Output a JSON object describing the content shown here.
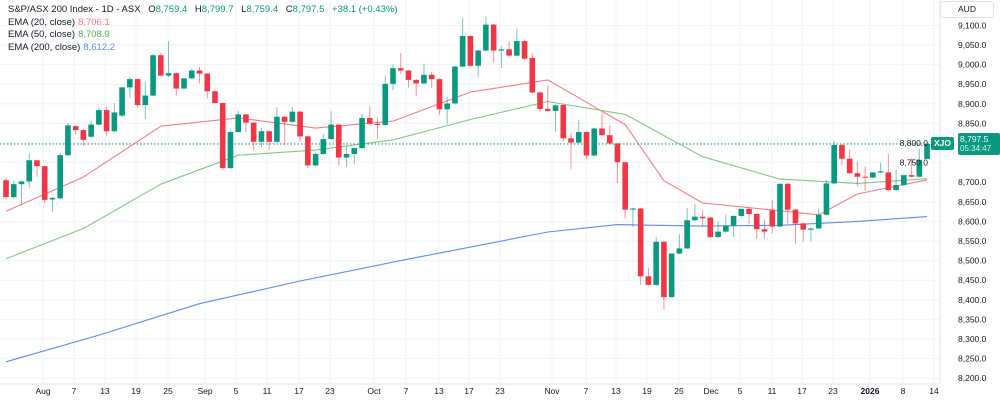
{
  "header": {
    "title": "S&P/ASX 200 Index - 1D - ASX",
    "open_label": "O",
    "open": "8,759.4",
    "high_label": "H",
    "high": "8,799.7",
    "low_label": "L",
    "low": "8,759.4",
    "close_label": "C",
    "close": "8,797.5",
    "change": "+38.1 (+0.43%)"
  },
  "indicators": [
    {
      "label": "EMA (20, close)",
      "value": "8,706.1",
      "color": "#f77c80"
    },
    {
      "label": "EMA (50, close)",
      "value": "8,708.9",
      "color": "#81c784"
    },
    {
      "label": "EMA (200, close)",
      "value": "8,612.2",
      "color": "#5b8def"
    }
  ],
  "price_axis": {
    "currency": "AUD",
    "symbol": "XJO",
    "last_price": "8,797.5",
    "countdown": "05:34:47"
  },
  "colors": {
    "up": "#089981",
    "down": "#f23645",
    "grid": "#f0f3fa",
    "last_price_line": "#089981"
  },
  "chart_data": {
    "type": "candlestick",
    "title": "S&P/ASX 200 Index - 1D - ASX",
    "ylim": [
      8200,
      9100
    ],
    "y_ticks": [
      "8,200.0",
      "8,250.0",
      "8,300.0",
      "8,350.0",
      "8,400.0",
      "8,450.0",
      "8,500.0",
      "8,550.0",
      "8,600.0",
      "8,650.0",
      "8,700.0",
      "8,750.0",
      "8,800.0",
      "8,850.0",
      "8,900.0",
      "8,950.0",
      "9,000.0",
      "9,050.0",
      "9,100.0"
    ],
    "x_ticks": [
      "Aug",
      "7",
      "13",
      "19",
      "25",
      "Sep",
      "5",
      "11",
      "17",
      "23",
      "Oct",
      "7",
      "13",
      "17",
      "23",
      "Nov",
      "7",
      "13",
      "19",
      "25",
      "Dec",
      "5",
      "11",
      "17",
      "23",
      "2026",
      "8",
      "14"
    ],
    "grid": true,
    "ohlc_order": [
      "open",
      "high",
      "low",
      "close"
    ],
    "candles": [
      [
        8705,
        8710,
        8657,
        8662
      ],
      [
        8662,
        8704,
        8659,
        8695
      ],
      [
        8695,
        8704,
        8640,
        8702
      ],
      [
        8702,
        8774,
        8686,
        8756
      ],
      [
        8756,
        8756,
        8714,
        8741
      ],
      [
        8741,
        8743,
        8646,
        8655
      ],
      [
        8656,
        8662,
        8625,
        8660
      ],
      [
        8659,
        8774,
        8657,
        8769
      ],
      [
        8769,
        8851,
        8767,
        8845
      ],
      [
        8843,
        8845,
        8822,
        8833
      ],
      [
        8833,
        8835,
        8792,
        8808
      ],
      [
        8816,
        8856,
        8814,
        8847
      ],
      [
        8847,
        8890,
        8845,
        8884
      ],
      [
        8884,
        8892,
        8818,
        8830
      ],
      [
        8830,
        8902,
        8828,
        8878
      ],
      [
        8870,
        8943,
        8866,
        8942
      ],
      [
        8942,
        8967,
        8915,
        8963
      ],
      [
        8963,
        8965,
        8891,
        8897
      ],
      [
        8897,
        8956,
        8861,
        8921
      ],
      [
        8921,
        9027,
        8919,
        9024
      ],
      [
        9024,
        9030,
        8970,
        8972
      ],
      [
        8972,
        9060,
        8968,
        8978
      ],
      [
        8978,
        8980,
        8921,
        8939
      ],
      [
        8939,
        8966,
        8937,
        8965
      ],
      [
        8965,
        8989,
        8963,
        8985
      ],
      [
        8985,
        8994,
        8952,
        8977
      ],
      [
        8977,
        8979,
        8913,
        8932
      ],
      [
        8932,
        8934,
        8900,
        8902
      ],
      [
        8902,
        8904,
        8731,
        8736
      ],
      [
        8736,
        8832,
        8734,
        8828
      ],
      [
        8828,
        8883,
        8826,
        8873
      ],
      [
        8873,
        8875,
        8828,
        8852
      ],
      [
        8852,
        8854,
        8783,
        8803
      ],
      [
        8803,
        8839,
        8790,
        8830
      ],
      [
        8830,
        8832,
        8783,
        8803
      ],
      [
        8803,
        8891,
        8801,
        8867
      ],
      [
        8867,
        8869,
        8794,
        8854
      ],
      [
        8854,
        8891,
        8852,
        8880
      ],
      [
        8880,
        8882,
        8803,
        8817
      ],
      [
        8817,
        8819,
        8736,
        8743
      ],
      [
        8743,
        8775,
        8741,
        8772
      ],
      [
        8772,
        8823,
        8770,
        8810
      ],
      [
        8810,
        8881,
        8808,
        8847
      ],
      [
        8847,
        8849,
        8743,
        8763
      ],
      [
        8763,
        8792,
        8739,
        8772
      ],
      [
        8772,
        8789,
        8746,
        8787
      ],
      [
        8787,
        8874,
        8785,
        8864
      ],
      [
        8864,
        8894,
        8847,
        8849
      ],
      [
        8849,
        8865,
        8811,
        8846
      ],
      [
        8846,
        8973,
        8844,
        8951
      ],
      [
        8951,
        9000,
        8935,
        8991
      ],
      [
        8991,
        9030,
        8976,
        8985
      ],
      [
        8985,
        8987,
        8941,
        8961
      ],
      [
        8961,
        8963,
        8920,
        8952
      ],
      [
        8952,
        9002,
        8950,
        8974
      ],
      [
        8974,
        8981,
        8941,
        8963
      ],
      [
        8963,
        8965,
        8872,
        8886
      ],
      [
        8886,
        8918,
        8848,
        8901
      ],
      [
        8901,
        8997,
        8899,
        8995
      ],
      [
        8995,
        9118,
        8993,
        9073
      ],
      [
        9073,
        9075,
        8995,
        8997
      ],
      [
        8997,
        9037,
        8967,
        9036
      ],
      [
        9036,
        9122,
        9034,
        9102
      ],
      [
        9102,
        9104,
        9004,
        9036
      ],
      [
        9036,
        9047,
        8991,
        9039
      ],
      [
        9039,
        9060,
        9020,
        9023
      ],
      [
        9023,
        9092,
        9021,
        9060
      ],
      [
        9060,
        9062,
        9013,
        9015
      ],
      [
        9017,
        9028,
        8927,
        8929
      ],
      [
        8929,
        8931,
        8880,
        8887
      ],
      [
        8887,
        8947,
        8880,
        8882
      ],
      [
        8882,
        8898,
        8829,
        8896
      ],
      [
        8897,
        8899,
        8804,
        8812
      ],
      [
        8812,
        8826,
        8734,
        8801
      ],
      [
        8801,
        8860,
        8799,
        8828
      ],
      [
        8828,
        8830,
        8759,
        8768
      ],
      [
        8768,
        8839,
        8766,
        8837
      ],
      [
        8837,
        8878,
        8818,
        8820
      ],
      [
        8820,
        8844,
        8797,
        8799
      ],
      [
        8799,
        8801,
        8698,
        8751
      ],
      [
        8751,
        8753,
        8608,
        8630
      ],
      [
        8630,
        8635,
        8586,
        8633
      ],
      [
        8633,
        8635,
        8438,
        8460
      ],
      [
        8460,
        8482,
        8436,
        8438
      ],
      [
        8438,
        8561,
        8436,
        8548
      ],
      [
        8548,
        8550,
        8375,
        8407
      ],
      [
        8407,
        8519,
        8405,
        8518
      ],
      [
        8518,
        8567,
        8516,
        8531
      ],
      [
        8531,
        8634,
        8529,
        8603
      ],
      [
        8603,
        8644,
        8601,
        8612
      ],
      [
        8612,
        8629,
        8586,
        8608
      ],
      [
        8610,
        8612,
        8558,
        8560
      ],
      [
        8560,
        8600,
        8558,
        8574
      ],
      [
        8574,
        8617,
        8572,
        8589
      ],
      [
        8589,
        8616,
        8560,
        8614
      ],
      [
        8614,
        8633,
        8612,
        8632
      ],
      [
        8632,
        8634,
        8592,
        8619
      ],
      [
        8619,
        8621,
        8556,
        8580
      ],
      [
        8580,
        8606,
        8556,
        8574
      ],
      [
        8628,
        8655,
        8569,
        8587
      ],
      [
        8587,
        8696,
        8585,
        8696
      ],
      [
        8696,
        8698,
        8594,
        8630
      ],
      [
        8630,
        8632,
        8542,
        8595
      ],
      [
        8595,
        8597,
        8548,
        8579
      ],
      [
        8579,
        8584,
        8548,
        8582
      ],
      [
        8582,
        8633,
        8580,
        8617
      ],
      [
        8617,
        8706,
        8615,
        8697
      ],
      [
        8697,
        8805,
        8695,
        8795
      ],
      [
        8795,
        8797,
        8743,
        8760
      ],
      [
        8760,
        8784,
        8722,
        8723
      ],
      [
        8723,
        8752,
        8690,
        8714
      ],
      [
        8714,
        8740,
        8678,
        8712
      ],
      [
        8712,
        8726,
        8710,
        8725
      ],
      [
        8725,
        8750,
        8723,
        8728
      ],
      [
        8725,
        8772,
        8678,
        8680
      ],
      [
        8680,
        8732,
        8678,
        8693
      ],
      [
        8693,
        8719,
        8691,
        8718
      ],
      [
        8718,
        8761,
        8712,
        8714
      ],
      [
        8714,
        8785,
        8712,
        8757
      ],
      [
        8759.4,
        8799.7,
        8759.4,
        8797.5
      ]
    ],
    "series": [
      {
        "name": "EMA (20, close)",
        "points_bar_value": [
          [
            0,
            8626
          ],
          [
            10,
            8713
          ],
          [
            20,
            8843
          ],
          [
            30,
            8864
          ],
          [
            40,
            8838
          ],
          [
            50,
            8856
          ],
          [
            60,
            8930
          ],
          [
            70,
            8961
          ],
          [
            75,
            8904
          ],
          [
            80,
            8847
          ],
          [
            85,
            8704
          ],
          [
            90,
            8647
          ],
          [
            100,
            8627
          ],
          [
            105,
            8617
          ],
          [
            110,
            8670
          ],
          [
            119,
            8706.1
          ]
        ]
      },
      {
        "name": "EMA (50, close)",
        "points_bar_value": [
          [
            0,
            8505
          ],
          [
            10,
            8582
          ],
          [
            20,
            8695
          ],
          [
            30,
            8769
          ],
          [
            40,
            8782
          ],
          [
            50,
            8808
          ],
          [
            60,
            8860
          ],
          [
            70,
            8906
          ],
          [
            80,
            8873
          ],
          [
            90,
            8765
          ],
          [
            100,
            8708
          ],
          [
            110,
            8697
          ],
          [
            119,
            8708.9
          ]
        ]
      },
      {
        "name": "EMA (200, close)",
        "points_bar_value": [
          [
            0,
            8242
          ],
          [
            12,
            8310
          ],
          [
            25,
            8390
          ],
          [
            38,
            8448
          ],
          [
            51,
            8500
          ],
          [
            70,
            8573
          ],
          [
            79,
            8592
          ],
          [
            90,
            8588
          ],
          [
            100,
            8590
          ],
          [
            110,
            8600
          ],
          [
            119,
            8612.2
          ]
        ]
      }
    ]
  }
}
